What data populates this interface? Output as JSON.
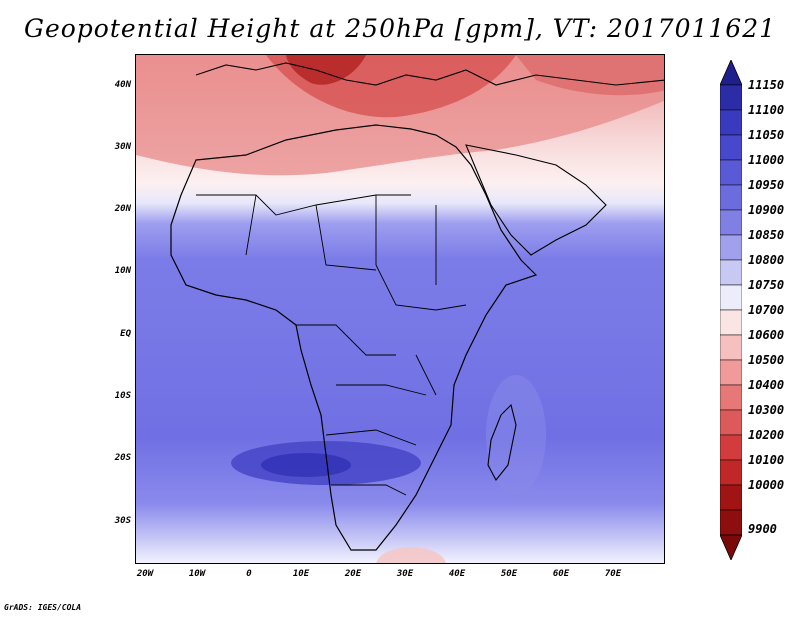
{
  "title": "Geopotential Height at 250hPa [gpm], VT: 2017011621",
  "footer": "GrADS: IGES/COLA",
  "map": {
    "lat_labels": [
      "40N",
      "30N",
      "20N",
      "10N",
      "EQ",
      "10S",
      "20S",
      "30S"
    ],
    "lon_labels": [
      "20W",
      "10W",
      "0",
      "10E",
      "20E",
      "30E",
      "40E",
      "50E",
      "60E",
      "70E"
    ]
  },
  "colorbar": {
    "levels": [
      "11150",
      "11100",
      "11050",
      "11000",
      "10950",
      "10900",
      "10850",
      "10800",
      "10750",
      "10700",
      "10600",
      "10500",
      "10400",
      "10300",
      "10200",
      "10100",
      "10000",
      "9900"
    ],
    "colors": [
      "#1e1e8c",
      "#2c2ca6",
      "#3a3abe",
      "#4848cc",
      "#5a5ad6",
      "#6c6cde",
      "#8080e4",
      "#a0a0ec",
      "#c8c8f4",
      "#ececfa",
      "#fbe4e4",
      "#f6c0c0",
      "#f09a9a",
      "#e67878",
      "#dc5a5a",
      "#d23c3c",
      "#c02828",
      "#a01414",
      "#7a0a0a"
    ]
  }
}
